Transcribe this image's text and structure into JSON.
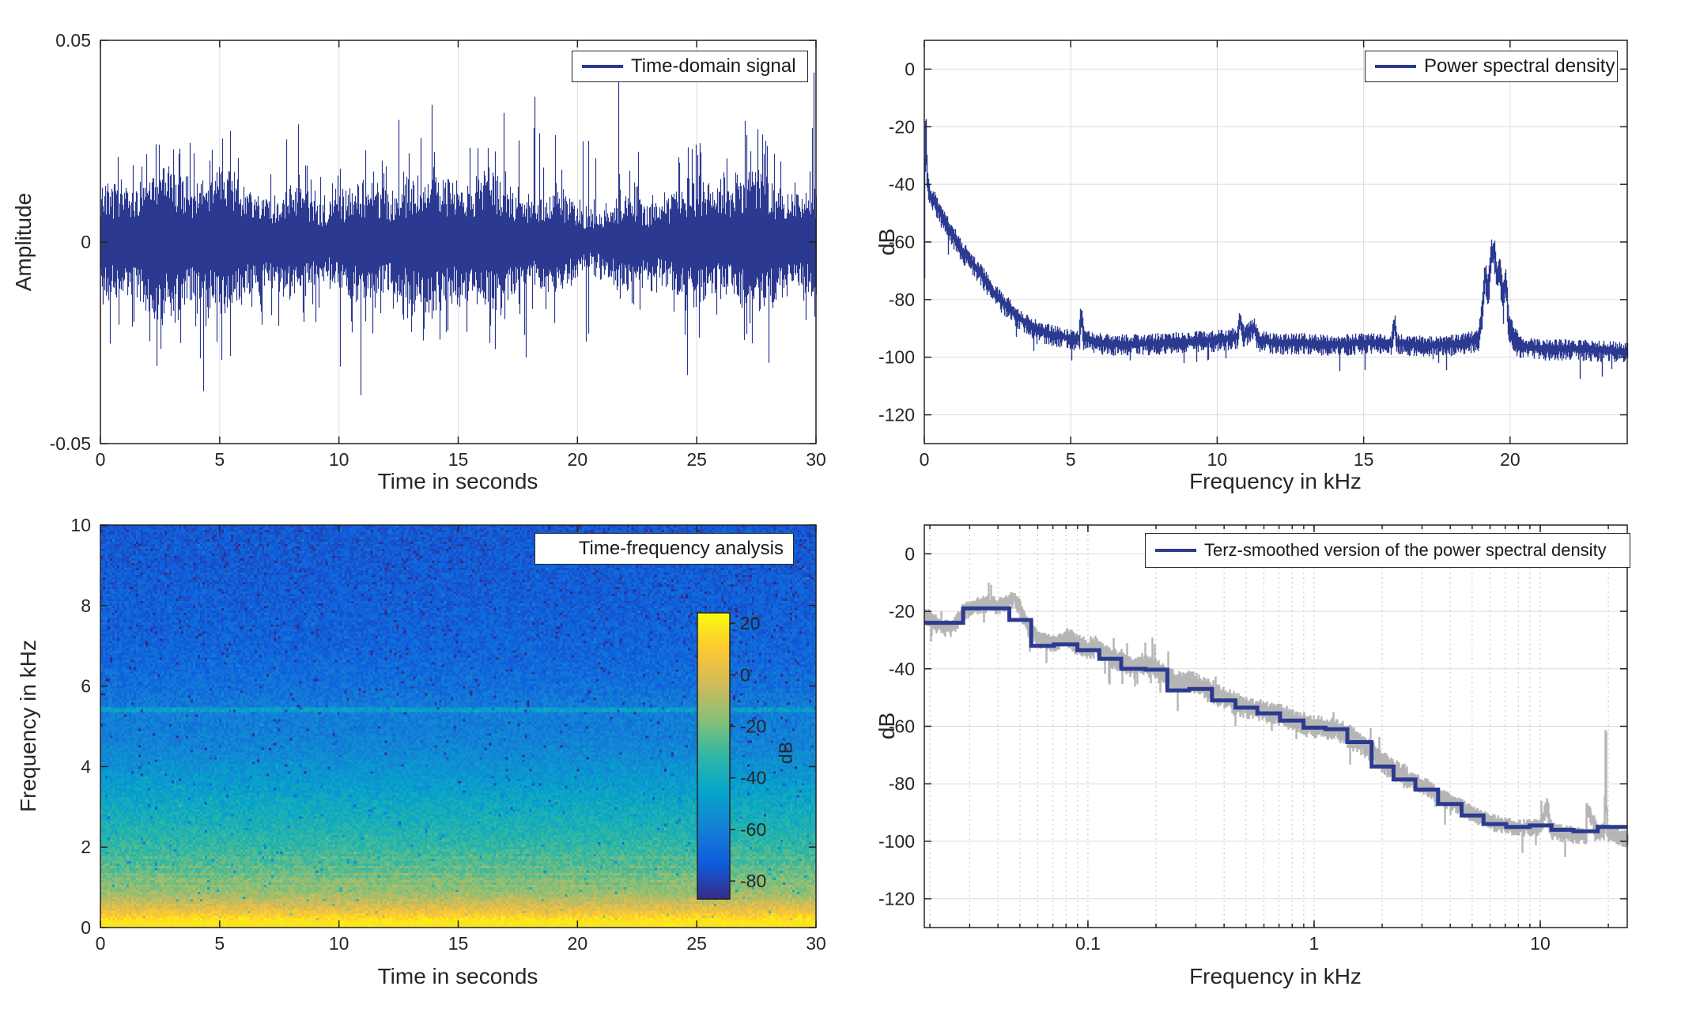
{
  "figure": {
    "background": "#ffffff"
  },
  "colors": {
    "line_navy": "#2b3990",
    "gray_curve": "#b5b5b5",
    "grid_major": "#dcdcdc",
    "grid_minor": "#c6c6c6",
    "axis_box": "#222222",
    "text": "#262626",
    "legend_border": "#262626",
    "legend_bg": "#ffffff"
  },
  "chart_data": [
    {
      "id": "time-domain",
      "type": "line",
      "legend": {
        "label": "Time-domain signal",
        "position": "top-right"
      },
      "xlabel": "Time in seconds",
      "ylabel": "Amplitude",
      "xlim": [
        0,
        30
      ],
      "ylim": [
        -0.05,
        0.05
      ],
      "xticks": [
        0,
        5,
        10,
        15,
        20,
        25,
        30
      ],
      "xtick_labels": [
        "0",
        "5",
        "10",
        "15",
        "20",
        "25",
        "30"
      ],
      "yticks": [
        -0.05,
        0,
        0.05
      ],
      "ytick_labels": [
        "-0.05",
        "0",
        "0.05"
      ],
      "grid": true,
      "series": [
        {
          "name": "Time-domain signal",
          "color": "#2b3990",
          "description": "dense broadband noise-like audio waveform, roughly stationary envelope",
          "rms_amplitude": 0.012,
          "typical_peak": 0.028,
          "notable_peaks": [
            {
              "t": 4.3,
              "a": -0.037
            },
            {
              "t": 10.9,
              "a": -0.038
            },
            {
              "t": 13.9,
              "a": 0.034
            },
            {
              "t": 16.9,
              "a": 0.032
            },
            {
              "t": 18.2,
              "a": 0.036
            },
            {
              "t": 21.7,
              "a": 0.043
            },
            {
              "t": 24.6,
              "a": -0.033
            },
            {
              "t": 27.0,
              "a": 0.03
            },
            {
              "t": 29.9,
              "a": 0.042
            }
          ]
        }
      ]
    },
    {
      "id": "power-spectral-density",
      "type": "line",
      "legend": {
        "label": "Power spectral density",
        "position": "top-right"
      },
      "xlabel": "Frequency in kHz",
      "ylabel": "dB",
      "xlim": [
        0,
        24
      ],
      "ylim": [
        -130,
        10
      ],
      "xticks": [
        0,
        5,
        10,
        15,
        20
      ],
      "xtick_labels": [
        "0",
        "5",
        "10",
        "15",
        "20"
      ],
      "yticks": [
        0,
        -20,
        -40,
        -60,
        -80,
        -100,
        -120
      ],
      "ytick_labels": [
        "0",
        "-20",
        "-40",
        "-60",
        "-80",
        "-100",
        "-120"
      ],
      "grid": true,
      "series": [
        {
          "name": "Power spectral density",
          "color": "#2b3990",
          "noise_band_db": 3.5,
          "backbone_kHz_dB": [
            [
              0,
              -70
            ],
            [
              0.04,
              -15
            ],
            [
              0.1,
              -38
            ],
            [
              0.2,
              -44
            ],
            [
              0.35,
              -46
            ],
            [
              0.5,
              -49
            ],
            [
              0.7,
              -53
            ],
            [
              1,
              -58
            ],
            [
              1.3,
              -63
            ],
            [
              1.6,
              -67
            ],
            [
              2,
              -72
            ],
            [
              2.4,
              -78
            ],
            [
              2.8,
              -82
            ],
            [
              3.2,
              -86
            ],
            [
              3.6,
              -89
            ],
            [
              4,
              -91
            ],
            [
              4.5,
              -92.5
            ],
            [
              5,
              -93.5
            ],
            [
              5.3,
              -93.5
            ],
            [
              5.35,
              -84
            ],
            [
              5.45,
              -93.5
            ],
            [
              6,
              -95
            ],
            [
              7,
              -95.5
            ],
            [
              8,
              -95
            ],
            [
              9,
              -94.5
            ],
            [
              10,
              -94
            ],
            [
              10.7,
              -93
            ],
            [
              10.78,
              -86.5
            ],
            [
              10.9,
              -93
            ],
            [
              11.25,
              -89.5
            ],
            [
              11.4,
              -94
            ],
            [
              12,
              -95
            ],
            [
              13,
              -95
            ],
            [
              14,
              -95.5
            ],
            [
              15,
              -95
            ],
            [
              15.95,
              -95
            ],
            [
              16.05,
              -87.5
            ],
            [
              16.15,
              -95
            ],
            [
              17,
              -96
            ],
            [
              18,
              -95.5
            ],
            [
              18.9,
              -94
            ],
            [
              19.05,
              -85
            ],
            [
              19.15,
              -70
            ],
            [
              19.25,
              -78
            ],
            [
              19.35,
              -65
            ],
            [
              19.45,
              -63
            ],
            [
              19.55,
              -72
            ],
            [
              19.65,
              -68
            ],
            [
              19.75,
              -80
            ],
            [
              19.85,
              -72
            ],
            [
              19.95,
              -88
            ],
            [
              20.1,
              -93
            ],
            [
              20.3,
              -96
            ],
            [
              21,
              -97
            ],
            [
              22,
              -97
            ],
            [
              23,
              -97.5
            ],
            [
              24,
              -98
            ]
          ]
        }
      ]
    },
    {
      "id": "time-frequency-analysis",
      "type": "heatmap",
      "legend": {
        "label": "Time-frequency analysis",
        "position": "top-right"
      },
      "xlabel": "Time in seconds",
      "ylabel": "Frequency in kHz",
      "xlim": [
        0,
        30
      ],
      "ylim": [
        0,
        10
      ],
      "xticks": [
        0,
        5,
        10,
        15,
        20,
        25,
        30
      ],
      "xtick_labels": [
        "0",
        "5",
        "10",
        "15",
        "20",
        "25",
        "30"
      ],
      "yticks": [
        0,
        2,
        4,
        6,
        8,
        10
      ],
      "ytick_labels": [
        "0",
        "2",
        "4",
        "6",
        "8",
        "10"
      ],
      "colormap": "parula",
      "colormap_stops": [
        "#352a87",
        "#0f5cdd",
        "#1481d6",
        "#06a4ca",
        "#2eb7a4",
        "#87bf77",
        "#d1bb59",
        "#fec832",
        "#f9fb0e"
      ],
      "colorbar": {
        "label": "dB",
        "ticks": [
          20,
          0,
          -20,
          -40,
          -60,
          -80
        ],
        "tick_labels": [
          "20",
          "0",
          "-20",
          "-40",
          "-60",
          "-80"
        ],
        "clim": [
          -87,
          24
        ]
      },
      "db_profile_vs_kHz": [
        [
          0,
          19
        ],
        [
          0.18,
          17
        ],
        [
          0.3,
          9
        ],
        [
          0.45,
          1
        ],
        [
          0.6,
          -5
        ],
        [
          0.8,
          -13
        ],
        [
          1,
          -18
        ],
        [
          1.2,
          -22
        ],
        [
          1.5,
          -26
        ],
        [
          1.8,
          -29
        ],
        [
          2.2,
          -34
        ],
        [
          2.6,
          -38
        ],
        [
          3,
          -42
        ],
        [
          3.5,
          -48
        ],
        [
          4,
          -53
        ],
        [
          4.5,
          -58
        ],
        [
          5,
          -61
        ],
        [
          5.3,
          -60
        ],
        [
          5.4,
          -56
        ],
        [
          5.5,
          -62
        ],
        [
          6,
          -66
        ],
        [
          6.5,
          -68
        ],
        [
          7,
          -70
        ],
        [
          8,
          -72
        ],
        [
          9,
          -73
        ],
        [
          10,
          -74
        ]
      ],
      "features": {
        "tonal_line_kHz": 5.4,
        "speckle_noise_db": 13,
        "bright_band_below_kHz": 0.3,
        "striped_band_kHz": [
          0.9,
          1.9
        ]
      }
    },
    {
      "id": "terz-smoothed-psd",
      "type": "line",
      "legend": {
        "label": "Terz-smoothed version of the power spectral density",
        "position": "top-right"
      },
      "xlabel": "Frequency in kHz",
      "ylabel": "dB",
      "xscale": "log",
      "xlim": [
        0.0189,
        24.25
      ],
      "ylim": [
        -130,
        10
      ],
      "xticks": [
        0.1,
        1,
        10
      ],
      "xtick_labels": [
        "0.1",
        "1",
        "10"
      ],
      "xminor": [
        0.02,
        0.03,
        0.04,
        0.05,
        0.06,
        0.07,
        0.08,
        0.09,
        0.2,
        0.3,
        0.4,
        0.5,
        0.6,
        0.7,
        0.8,
        0.9,
        2,
        3,
        4,
        5,
        6,
        7,
        8,
        9,
        20
      ],
      "yticks": [
        0,
        -20,
        -40,
        -60,
        -80,
        -100,
        -120
      ],
      "ytick_labels": [
        "0",
        "-20",
        "-40",
        "-60",
        "-80",
        "-100",
        "-120"
      ],
      "grid": true,
      "series": [
        {
          "name": "raw power spectral density",
          "color": "#b5b5b5",
          "noise_band_db": 3,
          "spike": {
            "f_kHz": 19.5,
            "dB": -62
          },
          "backbone_kHz_dB": [
            [
              0.019,
              -21
            ],
            [
              0.022,
              -25
            ],
            [
              0.025,
              -26
            ],
            [
              0.028,
              -20
            ],
            [
              0.032,
              -18
            ],
            [
              0.036,
              -17
            ],
            [
              0.04,
              -18
            ],
            [
              0.044,
              -16.5
            ],
            [
              0.048,
              -15.5
            ],
            [
              0.052,
              -22
            ],
            [
              0.056,
              -27
            ],
            [
              0.063,
              -30
            ],
            [
              0.07,
              -31
            ],
            [
              0.08,
              -29
            ],
            [
              0.09,
              -31
            ],
            [
              0.1,
              -33
            ],
            [
              0.11,
              -32
            ],
            [
              0.125,
              -36
            ],
            [
              0.14,
              -37
            ],
            [
              0.16,
              -39
            ],
            [
              0.18,
              -38
            ],
            [
              0.2,
              -40
            ],
            [
              0.22,
              -42
            ],
            [
              0.25,
              -45
            ],
            [
              0.28,
              -44
            ],
            [
              0.315,
              -46
            ],
            [
              0.36,
              -48
            ],
            [
              0.4,
              -50
            ],
            [
              0.45,
              -52
            ],
            [
              0.5,
              -53
            ],
            [
              0.56,
              -54
            ],
            [
              0.63,
              -55
            ],
            [
              0.7,
              -56
            ],
            [
              0.8,
              -57.5
            ],
            [
              0.9,
              -59
            ],
            [
              1,
              -60
            ],
            [
              1.12,
              -60.5
            ],
            [
              1.25,
              -61
            ],
            [
              1.4,
              -63
            ],
            [
              1.6,
              -65.5
            ],
            [
              1.8,
              -69
            ],
            [
              2,
              -72
            ],
            [
              2.24,
              -75
            ],
            [
              2.5,
              -77
            ],
            [
              2.8,
              -79
            ],
            [
              3.15,
              -81
            ],
            [
              3.55,
              -84
            ],
            [
              4,
              -86
            ],
            [
              4.5,
              -88
            ],
            [
              5,
              -90
            ],
            [
              5.6,
              -92
            ],
            [
              6.3,
              -93.5
            ],
            [
              7.1,
              -94.5
            ],
            [
              8,
              -95
            ],
            [
              9,
              -95
            ],
            [
              10,
              -95
            ],
            [
              10.75,
              -87
            ],
            [
              11,
              -93.5
            ],
            [
              11.2,
              -96
            ],
            [
              12.5,
              -97
            ],
            [
              14,
              -97.5
            ],
            [
              16,
              -98
            ],
            [
              16.05,
              -88
            ],
            [
              18,
              -97
            ],
            [
              19.3,
              -96
            ],
            [
              19.5,
              -62
            ],
            [
              19.7,
              -94
            ],
            [
              20,
              -97
            ],
            [
              22,
              -98
            ],
            [
              24.25,
              -99
            ]
          ]
        },
        {
          "name": "Terz-smoothed version of the power spectral density",
          "color": "#2b3990",
          "type": "stairs",
          "band_centers_kHz": [
            0.02,
            0.025,
            0.0315,
            0.04,
            0.05,
            0.063,
            0.08,
            0.1,
            0.125,
            0.16,
            0.2,
            0.25,
            0.315,
            0.4,
            0.5,
            0.63,
            0.8,
            1,
            1.25,
            1.6,
            2,
            2.5,
            3.15,
            4,
            5,
            6.3,
            8,
            10,
            12.5,
            16,
            20
          ],
          "band_dB": [
            -24,
            -24,
            -19,
            -19,
            -23,
            -32,
            -31.5,
            -33.5,
            -36.5,
            -40,
            -40.3,
            -47.5,
            -47,
            -51,
            -53.5,
            -55.5,
            -58,
            -60.5,
            -61,
            -65.5,
            -74,
            -78.5,
            -82,
            -87,
            -91,
            -94,
            -95,
            -94.5,
            -96,
            -96.5,
            -95
          ]
        }
      ]
    }
  ]
}
